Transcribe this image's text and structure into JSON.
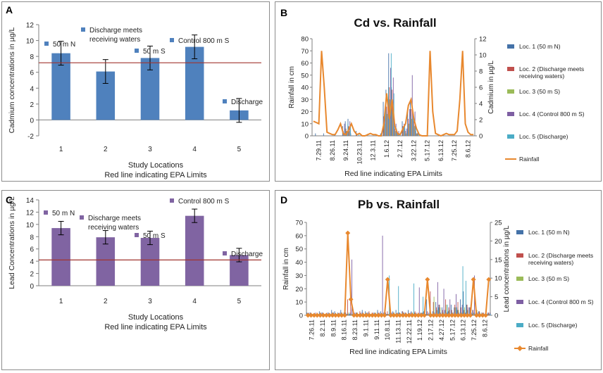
{
  "colors": {
    "blue_bar": "#4F81BD",
    "purple_bar": "#8064A2",
    "epa_line": "#A0342F",
    "loc1": "#4472A8",
    "loc2": "#C0504D",
    "loc3": "#9BBB59",
    "loc4": "#7E5FA3",
    "loc5": "#4BACC6",
    "rainfall": "#E8882E"
  },
  "panels": {
    "A": {
      "label": "A",
      "chart_data": {
        "type": "bar",
        "title": "",
        "categories": [
          "1",
          "2",
          "3",
          "4",
          "5"
        ],
        "values": [
          8.4,
          6.1,
          7.8,
          9.2,
          1.2
        ],
        "error": [
          1.5,
          1.5,
          1.5,
          1.5,
          1.5
        ],
        "ylabel": "Cadmium concentrations in µg/L",
        "xlabel": "Study Locations",
        "xlabel2": "Red line indicating EPA Limits",
        "ylim": [
          -2,
          12
        ],
        "yticks": [
          "-2",
          "0",
          "2",
          "4",
          "6",
          "8",
          "10",
          "12"
        ],
        "epa_limit": 7.2,
        "bar_labels": [
          "50 m N",
          "Discharge meets receiving waters",
          "50 m S",
          "Control 800 m S",
          "Discharge"
        ]
      }
    },
    "B": {
      "label": "B",
      "chart_data": {
        "type": "bar",
        "title": "Cd vs. Rainfall",
        "ylabel": "Rainfall in cm",
        "y2label": "Cadmium in µg/L",
        "xlabel": "Red line indicating EPA Limits",
        "ylim": [
          0,
          80
        ],
        "y2lim": [
          0,
          12
        ],
        "yticks": [
          "0",
          "10",
          "20",
          "30",
          "40",
          "50",
          "60",
          "70",
          "80"
        ],
        "y2ticks": [
          "0",
          "2",
          "4",
          "6",
          "8",
          "10",
          "12"
        ],
        "x_labels": [
          "7.29.11",
          "8.26.11",
          "9.24.11",
          "10.23.11",
          "12.3.11",
          "1.6.12",
          "2.7.12",
          "3.22.12",
          "5.17.12",
          "6.13.12",
          "7.25.12",
          "8.6.12"
        ],
        "legend": [
          "Loc. 1 (50 m N)",
          "Loc. 2 (Discharge meets receiving waters)",
          "Loc. 3 (50 m S)",
          "Loc. 4 (Control 800 m S)",
          "Loc. 5 (Discharge)",
          "Rainfall"
        ],
        "series": [
          {
            "name": "Loc. 1 (50 m N)",
            "values": [
              0,
              2,
              0,
              0,
              2,
              0,
              0,
              0,
              1,
              0,
              0,
              8,
              12,
              14,
              2,
              0,
              4,
              0,
              0,
              0,
              0,
              0,
              0,
              0,
              0,
              2,
              28,
              38,
              68,
              40,
              8,
              4,
              0,
              12,
              6,
              20,
              28,
              16,
              4,
              0,
              0,
              0,
              0,
              0,
              0,
              0,
              0,
              0,
              0,
              0,
              0,
              0,
              0,
              0,
              0,
              0,
              0,
              0,
              0,
              0
            ]
          },
          {
            "name": "Loc. 2 (Discharge meets receiving waters)",
            "values": [
              0,
              0,
              0,
              0,
              0,
              0,
              0,
              0,
              0,
              0,
              0,
              4,
              6,
              8,
              0,
              0,
              2,
              0,
              0,
              0,
              0,
              0,
              0,
              0,
              0,
              0,
              16,
              24,
              40,
              38,
              6,
              2,
              0,
              8,
              4,
              14,
              22,
              12,
              2,
              0,
              0,
              0,
              0,
              0,
              0,
              0,
              0,
              0,
              0,
              0,
              0,
              0,
              0,
              0,
              0,
              0,
              0,
              0,
              0,
              0
            ]
          },
          {
            "name": "Loc. 3 (50 m S)",
            "values": [
              0,
              0,
              0,
              0,
              0,
              0,
              0,
              0,
              0,
              0,
              0,
              2,
              4,
              4,
              0,
              0,
              0,
              0,
              0,
              0,
              0,
              0,
              0,
              0,
              0,
              0,
              10,
              18,
              30,
              28,
              4,
              2,
              0,
              6,
              2,
              10,
              14,
              8,
              2,
              0,
              0,
              0,
              0,
              0,
              0,
              0,
              0,
              0,
              0,
              0,
              0,
              0,
              0,
              0,
              0,
              0,
              0,
              0,
              0,
              0
            ]
          },
          {
            "name": "Loc. 4 (Control 800 m S)",
            "values": [
              0,
              0,
              0,
              0,
              0,
              0,
              0,
              0,
              0,
              0,
              0,
              10,
              4,
              12,
              0,
              0,
              0,
              0,
              0,
              0,
              0,
              0,
              0,
              0,
              0,
              0,
              20,
              30,
              56,
              48,
              10,
              4,
              0,
              10,
              6,
              22,
              50,
              20,
              4,
              0,
              0,
              0,
              0,
              0,
              0,
              0,
              0,
              0,
              0,
              0,
              0,
              0,
              0,
              0,
              0,
              0,
              0,
              0,
              0,
              0
            ]
          },
          {
            "name": "Loc. 5 (Discharge)",
            "values": [
              0,
              0,
              0,
              0,
              0,
              0,
              0,
              0,
              0,
              0,
              0,
              6,
              10,
              8,
              0,
              0,
              2,
              0,
              0,
              0,
              0,
              0,
              0,
              0,
              0,
              0,
              22,
              40,
              68,
              35,
              6,
              2,
              0,
              8,
              4,
              16,
              18,
              10,
              2,
              0,
              0,
              0,
              0,
              0,
              0,
              0,
              0,
              0,
              0,
              0,
              0,
              0,
              0,
              0,
              0,
              0,
              0,
              0,
              0,
              0
            ]
          }
        ],
        "rainfall_cm": [
          12,
          11,
          10,
          70,
          40,
          3,
          2,
          1,
          1,
          5,
          10,
          2,
          1,
          5,
          10,
          4,
          1,
          2,
          0,
          0,
          1,
          2,
          1,
          1,
          0,
          0,
          10,
          35,
          14,
          30,
          8,
          2,
          1,
          6,
          10,
          25,
          30,
          14,
          6,
          1,
          0,
          0,
          0,
          70,
          20,
          2,
          1,
          0,
          1,
          2,
          1,
          1,
          1,
          4,
          30,
          70,
          10,
          3,
          1,
          1
        ]
      }
    },
    "C": {
      "label": "C",
      "chart_data": {
        "type": "bar",
        "title": "",
        "categories": [
          "1",
          "2",
          "3",
          "4",
          "5"
        ],
        "values": [
          9.4,
          7.9,
          7.8,
          11.4,
          5.0
        ],
        "error": [
          1.1,
          1.1,
          1.1,
          1.1,
          1.1
        ],
        "ylabel": "Lead Concentrations in µg/L",
        "xlabel": "Study Locations",
        "xlabel2": "Red line indicating EPA Limits",
        "ylim": [
          0,
          14
        ],
        "yticks": [
          "0",
          "2",
          "4",
          "6",
          "8",
          "10",
          "12",
          "14"
        ],
        "epa_limit": 4.2,
        "bar_labels": [
          "50 m N",
          "Discharge meets receiving waters",
          "50 m S",
          "Control 800 m S",
          "Discharge"
        ]
      }
    },
    "D": {
      "label": "D",
      "chart_data": {
        "type": "bar",
        "title": "Pb vs. Rainfall",
        "ylabel": "Rainfall in cm",
        "y2label": "Lead concentrations in µg/L",
        "xlabel": "Red line indicating EPA Limits",
        "ylim": [
          0,
          70
        ],
        "y2lim": [
          0,
          25
        ],
        "yticks": [
          "0",
          "10",
          "20",
          "30",
          "40",
          "50",
          "60",
          "70"
        ],
        "y2ticks": [
          "0",
          "5",
          "10",
          "15",
          "20",
          "25"
        ],
        "x_labels": [
          "7.26.11",
          "8.2.11",
          "8.9.11",
          "8.16.11",
          "8.23.11",
          "9.1.11",
          "9.11.11",
          "10.8.11",
          "11.13.11",
          "12.22.11",
          "1.19.12",
          "2.17.12",
          "4.27.12",
          "5.17.12",
          "6.13.12",
          "7.25.12",
          "8.6.12"
        ],
        "legend": [
          "Loc. 1 (50 m N)",
          "Loc. 2 (Discharge meets receiving waters)",
          "Loc. 3 (50 m S)",
          "Loc. 4 (Control 800 m S)",
          "Loc. 5 (Discharge)",
          "Rainfall"
        ],
        "series": [
          {
            "name": "Loc. 1 (50 m N)",
            "values": [
              2,
              2,
              1,
              1,
              3,
              2,
              1,
              2,
              4,
              3,
              2,
              4,
              2,
              1,
              2,
              3,
              2,
              1,
              4,
              3,
              2,
              1,
              2,
              4,
              3,
              2,
              1,
              2,
              3,
              4,
              2,
              3,
              2,
              4,
              3,
              2,
              1,
              2,
              3,
              12,
              4,
              3,
              10,
              8,
              6,
              4,
              3,
              8,
              6,
              4,
              12,
              18,
              8,
              6,
              4,
              2,
              3,
              2,
              1,
              2
            ]
          },
          {
            "name": "Loc. 2 (Discharge meets receiving waters)",
            "values": [
              1,
              2,
              1,
              2,
              1,
              2,
              1,
              1,
              2,
              1,
              1,
              2,
              1,
              12,
              15,
              1,
              2,
              3,
              2,
              1,
              3,
              2,
              1,
              2,
              1,
              2,
              3,
              1,
              2,
              1,
              2,
              3,
              2,
              1,
              2,
              3,
              2,
              1,
              2,
              3,
              18,
              10,
              6,
              8,
              4,
              12,
              6,
              4,
              8,
              10,
              6,
              4,
              8,
              6,
              4,
              2,
              3,
              2,
              1,
              2
            ]
          },
          {
            "name": "Loc. 3 (50 m S)",
            "values": [
              1,
              1,
              1,
              1,
              2,
              1,
              1,
              1,
              2,
              1,
              1,
              2,
              1,
              2,
              1,
              1,
              2,
              1,
              1,
              2,
              1,
              1,
              2,
              1,
              1,
              2,
              1,
              1,
              2,
              1,
              1,
              2,
              1,
              1,
              2,
              1,
              1,
              2,
              1,
              1,
              2,
              14,
              4,
              6,
              2,
              8,
              4,
              2,
              6,
              4,
              2,
              6,
              4,
              8,
              2,
              4,
              2,
              1,
              2,
              1
            ]
          },
          {
            "name": "Loc. 4 (Control 800 m S)",
            "values": [
              2,
              1,
              2,
              1,
              2,
              1,
              2,
              1,
              2,
              1,
              2,
              1,
              2,
              1,
              42,
              2,
              1,
              2,
              1,
              2,
              1,
              2,
              1,
              2,
              60,
              2,
              1,
              2,
              1,
              2,
              1,
              2,
              1,
              2,
              1,
              2,
              21,
              2,
              1,
              2,
              1,
              2,
              25,
              2,
              20,
              2,
              12,
              2,
              16,
              2,
              8,
              2,
              6,
              2,
              30,
              2,
              1,
              2,
              1,
              2
            ]
          },
          {
            "name": "Loc. 5 (Discharge)",
            "values": [
              1,
              1,
              1,
              1,
              1,
              1,
              1,
              1,
              1,
              1,
              1,
              1,
              1,
              1,
              1,
              1,
              1,
              1,
              1,
              1,
              1,
              1,
              1,
              1,
              1,
              1,
              30,
              1,
              1,
              22,
              1,
              1,
              1,
              1,
              24,
              1,
              1,
              14,
              1,
              1,
              1,
              1,
              6,
              1,
              1,
              8,
              1,
              1,
              6,
              1,
              37,
              26,
              1,
              1,
              1,
              1,
              1,
              1,
              1,
              1
            ]
          }
        ],
        "rainfall_cm": [
          0,
          0,
          0,
          0,
          0,
          0,
          0,
          0,
          0,
          0,
          0,
          0,
          0,
          62,
          12,
          0,
          0,
          0,
          0,
          0,
          0,
          0,
          0,
          0,
          0,
          0,
          27,
          0,
          0,
          0,
          0,
          0,
          0,
          0,
          0,
          0,
          0,
          0,
          0,
          27,
          0,
          0,
          0,
          0,
          0,
          0,
          0,
          0,
          0,
          0,
          0,
          0,
          0,
          0,
          27,
          0,
          0,
          0,
          0,
          27
        ]
      }
    }
  }
}
